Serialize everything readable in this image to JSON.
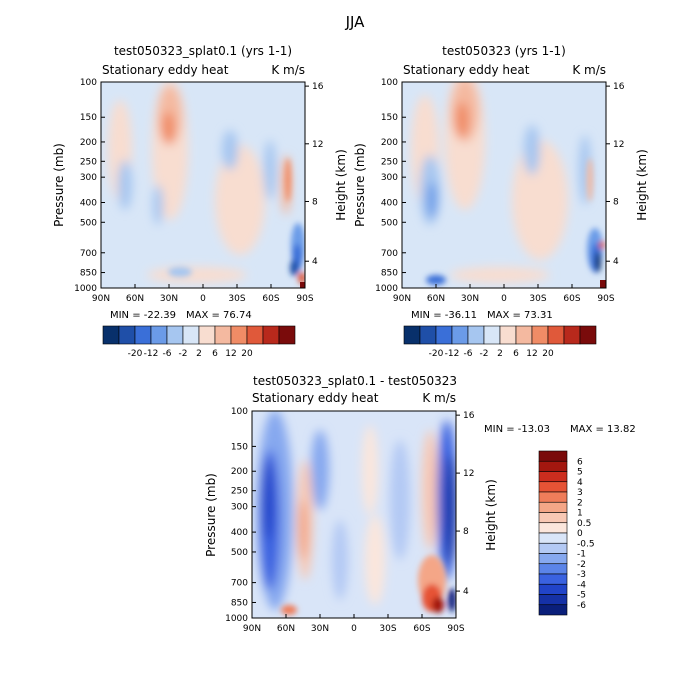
{
  "figure_title": "JJA",
  "chart_data": [
    {
      "type": "heatmap",
      "title": "test050323_splat0.1 (yrs 1-1)",
      "left_subtitle": "Stationary eddy heat",
      "right_subtitle": "K m/s",
      "xlabel": "",
      "ylabel": "Pressure (mb)",
      "y2label": "Height (km)",
      "x_ticks": [
        "90N",
        "60N",
        "30N",
        "0",
        "30S",
        "60S",
        "90S"
      ],
      "y_ticks": [
        "100",
        "150",
        "200",
        "250",
        "300",
        "400",
        "500",
        "700",
        "850",
        "1000"
      ],
      "y2_ticks": [
        "16",
        "12",
        "8",
        "4"
      ],
      "min_label": "MIN = -22.39",
      "max_label": "MAX = 76.74",
      "min": -22.39,
      "max": 76.74,
      "colorbar_labels": [
        "-20",
        "-12",
        "-6",
        "-2",
        "2",
        "6",
        "12",
        "20"
      ]
    },
    {
      "type": "heatmap",
      "title": "test050323 (yrs 1-1)",
      "left_subtitle": "Stationary eddy heat",
      "right_subtitle": "K m/s",
      "xlabel": "",
      "ylabel": "Pressure (mb)",
      "y2label": "Height (km)",
      "x_ticks": [
        "90N",
        "60N",
        "30N",
        "0",
        "30S",
        "60S",
        "90S"
      ],
      "y_ticks": [
        "100",
        "150",
        "200",
        "250",
        "300",
        "400",
        "500",
        "700",
        "850",
        "1000"
      ],
      "y2_ticks": [
        "16",
        "12",
        "8",
        "4"
      ],
      "min_label": "MIN = -36.11",
      "max_label": "MAX = 73.31",
      "min": -36.11,
      "max": 73.31,
      "colorbar_labels": [
        "-20",
        "-12",
        "-6",
        "-2",
        "2",
        "6",
        "12",
        "20"
      ]
    },
    {
      "type": "heatmap",
      "title": "test050323_splat0.1 - test050323",
      "left_subtitle": "Stationary eddy heat",
      "right_subtitle": "K m/s",
      "xlabel": "",
      "ylabel": "Pressure (mb)",
      "y2label": "Height (km)",
      "x_ticks": [
        "90N",
        "60N",
        "30N",
        "0",
        "30S",
        "60S",
        "90S"
      ],
      "y_ticks": [
        "100",
        "150",
        "200",
        "250",
        "300",
        "400",
        "500",
        "700",
        "850",
        "1000"
      ],
      "y2_ticks": [
        "16",
        "12",
        "8",
        "4"
      ],
      "min_label": "MIN = -13.03",
      "max_label": "MAX = 13.82",
      "min": -13.03,
      "max": 13.82,
      "colorbar_labels": [
        "6",
        "5",
        "4",
        "3",
        "2",
        "1",
        "0.5",
        "0",
        "-0.5",
        "-1",
        "-2",
        "-3",
        "-4",
        "-5",
        "-6"
      ]
    }
  ],
  "colors": {
    "cb12": [
      "#08306b",
      "#1f4fa8",
      "#3a6fd8",
      "#6b9be8",
      "#a6c6f0",
      "#d8e6f7",
      "#f8ddd0",
      "#f4b9a0",
      "#f08c66",
      "#e0593a",
      "#b8291c",
      "#7a0b0b"
    ],
    "cb16": [
      "#0a1f7a",
      "#1531a6",
      "#2144c9",
      "#3a62e0",
      "#5b84e8",
      "#86a8ef",
      "#b3c9f4",
      "#d9e5f8",
      "#fbe6dc",
      "#f8c8b4",
      "#f4a687",
      "#ef7d5a",
      "#e65335",
      "#cc2d1e",
      "#a3170f",
      "#7a0a0a"
    ]
  }
}
